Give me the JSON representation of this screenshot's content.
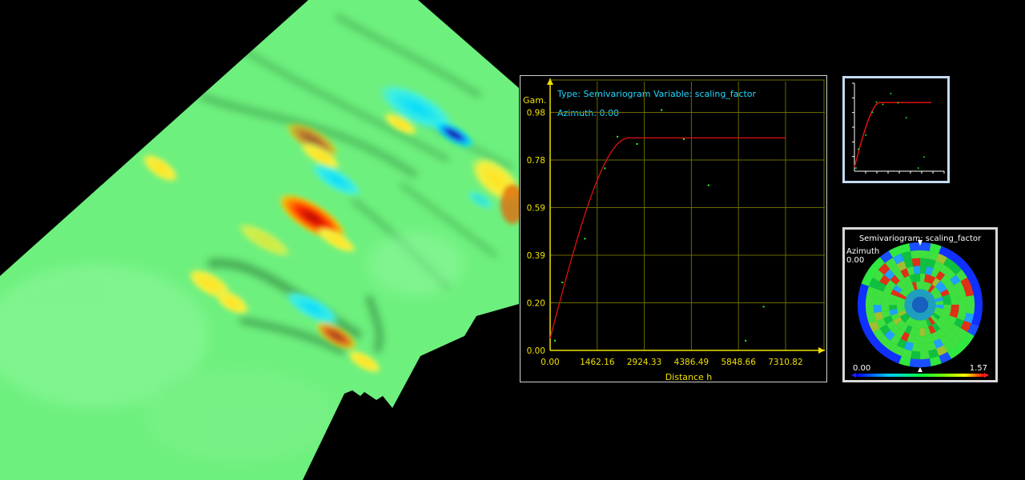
{
  "chart_data": [
    {
      "type": "scatter",
      "title": "Type: Semivariogram  Variable: scaling_factor",
      "subtitle": "Azimuth: 0.00",
      "xlabel": "Distance h",
      "ylabel": "Gam.",
      "xlim": [
        0,
        8530
      ],
      "ylim": [
        0,
        1.12
      ],
      "x_ticks": [
        "0.00",
        "1462.16",
        "2924.33",
        "4386.49",
        "5848.66",
        "7310.82"
      ],
      "y_ticks": [
        "0.00",
        "0.20",
        "0.39",
        "0.59",
        "0.78",
        "0.98"
      ],
      "grid": true,
      "series": [
        {
          "kind": "points",
          "color": "#2cff2c",
          "points": [
            [
              150,
              0.04
            ],
            [
              380,
              0.28
            ],
            [
              1080,
              0.46
            ],
            [
              1700,
              0.75
            ],
            [
              2090,
              0.88
            ],
            [
              2700,
              0.85
            ],
            [
              3460,
              0.99
            ],
            [
              4150,
              0.87
            ],
            [
              4920,
              0.68
            ],
            [
              6070,
              0.04
            ],
            [
              6630,
              0.18
            ]
          ]
        },
        {
          "kind": "model",
          "color": "#e01010",
          "model": "spherical",
          "nugget": 0.05,
          "sill": 0.875,
          "range": 2450,
          "xmax": 7330
        }
      ]
    },
    {
      "type": "scatter",
      "title": "",
      "xlim": [
        0,
        8530
      ],
      "ylim": [
        0,
        1.12
      ],
      "series": [
        {
          "kind": "points",
          "color": "#2cff2c",
          "points": [
            [
              150,
              0.04
            ],
            [
              380,
              0.28
            ],
            [
              1080,
              0.46
            ],
            [
              1700,
              0.75
            ],
            [
              2090,
              0.88
            ],
            [
              2700,
              0.85
            ],
            [
              3460,
              0.99
            ],
            [
              4150,
              0.87
            ],
            [
              4920,
              0.68
            ],
            [
              6070,
              0.04
            ],
            [
              6630,
              0.18
            ]
          ]
        },
        {
          "kind": "model",
          "color": "#e01010",
          "model": "spherical",
          "nugget": 0.05,
          "sill": 0.875,
          "range": 2450,
          "xmax": 7330
        }
      ]
    },
    {
      "type": "heatmap",
      "title": "Semivariogram: scaling_factor",
      "azimuth_label": "Azimuth",
      "azimuth_value": "0.00",
      "colorbar_min": "0.00",
      "colorbar_max": "1.57",
      "colorbar_colors": [
        "#0000ff",
        "#00c8ff",
        "#00ff40",
        "#80ff00",
        "#ffff00",
        "#ff0000"
      ]
    }
  ],
  "surface": {
    "base_color": "#6ef07e",
    "colors": {
      "high": "#e00000",
      "mid_high": "#ffe020",
      "low": "#00e8ff",
      "very_low": "#1010a0",
      "shade": "#2e8a3a"
    }
  },
  "labels": {
    "title": "Type: Semivariogram  Variable: scaling_factor",
    "azimuth": "Azimuth: 0.00",
    "ylabel": "Gam.",
    "xlabel": "Distance h",
    "rose_title": "Semivariogram: scaling_factor",
    "rose_azimuth": "Azimuth",
    "rose_azimuth_value": "0.00",
    "rose_min": "0.00",
    "rose_max": "1.57"
  }
}
